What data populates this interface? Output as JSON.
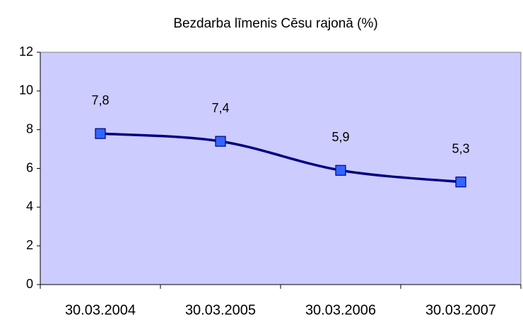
{
  "chart_data": {
    "type": "line",
    "title": "Bezdarba līmenis Cēsu rajonā (%)",
    "categories": [
      "30.03.2004",
      "30.03.2005",
      "30.03.2006",
      "30.03.2007"
    ],
    "values": [
      7.8,
      7.4,
      5.9,
      5.3
    ],
    "value_labels": [
      "7,8",
      "7,4",
      "5,9",
      "5,3"
    ],
    "color": "#000080",
    "marker_color": "#3366ff",
    "plot_background": "#ccccff",
    "smooth": true,
    "ylim": [
      0,
      12
    ],
    "yticks": [
      0,
      2,
      4,
      6,
      8,
      10,
      12
    ],
    "grid": false
  }
}
